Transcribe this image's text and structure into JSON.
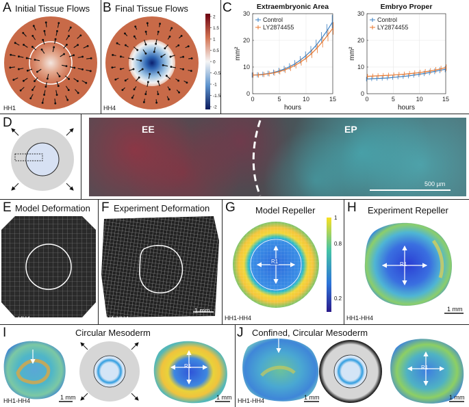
{
  "panels": {
    "a": {
      "label": "A",
      "title": "Initial Tissue Flows",
      "stage": "HH1"
    },
    "b": {
      "label": "B",
      "title": "Final Tissue Flows",
      "stage": "HH4",
      "colorbar_ticks": [
        "2",
        "1.5",
        "1",
        "0.5",
        "0",
        "-0.5",
        "-1",
        "-1.5",
        "-2"
      ]
    },
    "c": {
      "label": "C"
    },
    "d": {
      "label": "D",
      "ee": "EE",
      "ep": "EP",
      "scale": "500 µm"
    },
    "e": {
      "label": "E",
      "title": "Model Deformation",
      "stage": "HH1-HH4"
    },
    "f": {
      "label": "F",
      "title": "Experiment Deformation",
      "stage": "HH1-HH4",
      "scale": "1 mm"
    },
    "g": {
      "label": "G",
      "title": "Model Repeller",
      "stage": "HH1-HH4",
      "r1": "R1",
      "colorbar_ticks": [
        "1",
        "0.8",
        "0.2"
      ]
    },
    "h": {
      "label": "H",
      "title": "Experiment Repeller",
      "stage": "HH1-HH4",
      "r1": "R1",
      "scale": "1 mm"
    },
    "i": {
      "label": "I",
      "title": "Circular Mesoderm",
      "stage": "HH1-HH4",
      "a": "A",
      "r1": "R1",
      "scale1": "1 mm",
      "scale2": "1 mm"
    },
    "j": {
      "label": "J",
      "title": "Confined, Circular Mesoderm",
      "stage": "HH1-HH4",
      "a": "A",
      "r1": "R1",
      "scale1": "1 mm",
      "scale2": "1 mm"
    }
  },
  "chart_data": [
    {
      "type": "line",
      "title": "Extraembryonic Area",
      "xlabel": "hours",
      "ylabel": "mm²",
      "xlim": [
        0,
        15
      ],
      "ylim": [
        0,
        30
      ],
      "xticks": [
        0,
        5,
        10,
        15
      ],
      "yticks": [
        0,
        10,
        20,
        30
      ],
      "legend_position": "top-left",
      "grid": true,
      "error_bars": true,
      "x": [
        0,
        1,
        2,
        3,
        4,
        5,
        6,
        7,
        8,
        9,
        10,
        11,
        12,
        13,
        14,
        15
      ],
      "series": [
        {
          "name": "Control",
          "color": "#3a7fc2",
          "values": [
            7.0,
            7.1,
            7.3,
            7.6,
            8.0,
            8.6,
            9.3,
            10.2,
            11.3,
            12.7,
            14.3,
            16.2,
            18.4,
            21.0,
            23.8,
            27.0
          ]
        },
        {
          "name": "LY2874455",
          "color": "#e8772e",
          "values": [
            7.0,
            7.0,
            7.2,
            7.5,
            7.8,
            8.3,
            8.9,
            9.7,
            10.7,
            11.9,
            13.3,
            15.0,
            17.0,
            19.3,
            21.8,
            24.5
          ]
        }
      ]
    },
    {
      "type": "line",
      "title": "Embryo Proper",
      "xlabel": "hours",
      "ylabel": "mm²",
      "xlim": [
        0,
        15
      ],
      "ylim": [
        0,
        30
      ],
      "xticks": [
        0,
        5,
        10,
        15
      ],
      "yticks": [
        0,
        10,
        20,
        30
      ],
      "legend_position": "top-left",
      "grid": true,
      "error_bars": true,
      "x": [
        0,
        1,
        2,
        3,
        4,
        5,
        6,
        7,
        8,
        9,
        10,
        11,
        12,
        13,
        14,
        15
      ],
      "series": [
        {
          "name": "Control",
          "color": "#3a7fc2",
          "values": [
            5.5,
            5.6,
            5.7,
            5.8,
            5.9,
            6.1,
            6.3,
            6.5,
            6.7,
            7.0,
            7.3,
            7.6,
            8.0,
            8.4,
            8.8,
            9.2
          ]
        },
        {
          "name": "LY2874455",
          "color": "#e8772e",
          "values": [
            6.5,
            6.6,
            6.7,
            6.8,
            6.9,
            7.0,
            7.2,
            7.3,
            7.5,
            7.7,
            7.9,
            8.2,
            8.5,
            8.9,
            9.3,
            9.8
          ]
        }
      ]
    }
  ]
}
